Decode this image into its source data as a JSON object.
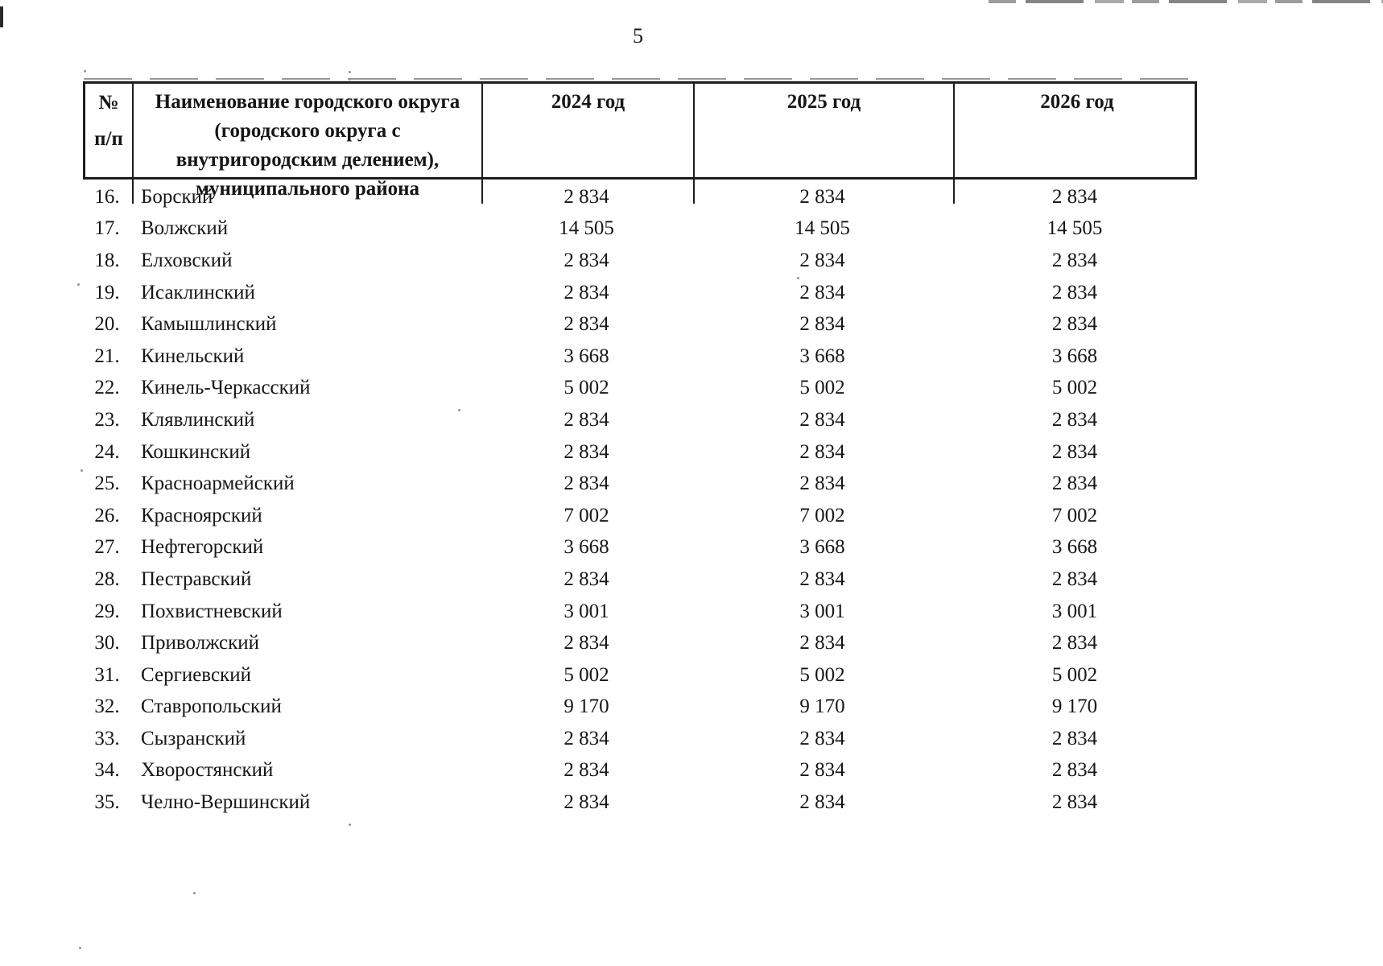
{
  "page": {
    "number": "5"
  },
  "table": {
    "headers": [
      "№\nп/п",
      "Наименование городского округа\n(городского округа с\nвнутригородским делением),\nмуниципального района",
      "2024 год",
      "2025 год",
      "2026 год"
    ],
    "rows": [
      {
        "num": "16.",
        "name": "Борский",
        "y2024": "2 834",
        "y2025": "2 834",
        "y2026": "2 834"
      },
      {
        "num": "17.",
        "name": "Волжский",
        "y2024": "14 505",
        "y2025": "14 505",
        "y2026": "14 505"
      },
      {
        "num": "18.",
        "name": "Елховский",
        "y2024": "2 834",
        "y2025": "2 834",
        "y2026": "2 834"
      },
      {
        "num": "19.",
        "name": "Исаклинский",
        "y2024": "2 834",
        "y2025": "2 834",
        "y2026": "2 834"
      },
      {
        "num": "20.",
        "name": "Камышлинский",
        "y2024": "2 834",
        "y2025": "2 834",
        "y2026": "2 834"
      },
      {
        "num": "21.",
        "name": "Кинельский",
        "y2024": "3 668",
        "y2025": "3 668",
        "y2026": "3 668"
      },
      {
        "num": "22.",
        "name": "Кинель-Черкасский",
        "y2024": "5 002",
        "y2025": "5 002",
        "y2026": "5 002"
      },
      {
        "num": "23.",
        "name": "Клявлинский",
        "y2024": "2 834",
        "y2025": "2 834",
        "y2026": "2 834"
      },
      {
        "num": "24.",
        "name": "Кошкинский",
        "y2024": "2 834",
        "y2025": "2 834",
        "y2026": "2 834"
      },
      {
        "num": "25.",
        "name": "Красноармейский",
        "y2024": "2 834",
        "y2025": "2 834",
        "y2026": "2 834"
      },
      {
        "num": "26.",
        "name": "Красноярский",
        "y2024": "7 002",
        "y2025": "7 002",
        "y2026": "7 002"
      },
      {
        "num": "27.",
        "name": "Нефтегорский",
        "y2024": "3 668",
        "y2025": "3 668",
        "y2026": "3 668"
      },
      {
        "num": "28.",
        "name": "Пестравский",
        "y2024": "2 834",
        "y2025": "2 834",
        "y2026": "2 834"
      },
      {
        "num": "29.",
        "name": "Похвистневский",
        "y2024": "3 001",
        "y2025": "3 001",
        "y2026": "3 001"
      },
      {
        "num": "30.",
        "name": "Приволжский",
        "y2024": "2 834",
        "y2025": "2 834",
        "y2026": "2 834"
      },
      {
        "num": "31.",
        "name": "Сергиевский",
        "y2024": "5 002",
        "y2025": "5 002",
        "y2026": "5 002"
      },
      {
        "num": "32.",
        "name": "Ставропольский",
        "y2024": "9 170",
        "y2025": "9 170",
        "y2026": "9 170"
      },
      {
        "num": "33.",
        "name": "Сызранский",
        "y2024": "2 834",
        "y2025": "2 834",
        "y2026": "2 834"
      },
      {
        "num": "34.",
        "name": "Хворостянский",
        "y2024": "2 834",
        "y2025": "2 834",
        "y2026": "2 834"
      },
      {
        "num": "35.",
        "name": "Челно-Вершинский",
        "y2024": "2 834",
        "y2025": "2 834",
        "y2026": "2 834"
      }
    ]
  }
}
